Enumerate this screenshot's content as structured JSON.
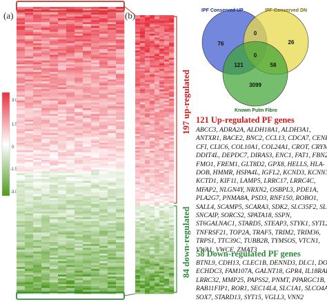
{
  "panels": {
    "a": "(a)",
    "b": "(b)"
  },
  "colorbar": {
    "ticks": [
      "3.0",
      "1.5",
      "0",
      "-1.5",
      "-3.0"
    ],
    "high_color": "#e8303e",
    "mid_color": "#ffffff",
    "low_color": "#4f9a1e"
  },
  "heatmap": {
    "up_label": "197 up-regulated",
    "down_label": "84 down-regulated",
    "up_label_color": "#cc1a1a",
    "down_label_color": "#2e8b3a",
    "box_color_top": "#c0392b",
    "box_color_bottom": "#2e8b3a"
  },
  "venn": {
    "sets": [
      {
        "name": "IPF Conserved UP",
        "color": "#5b72d6"
      },
      {
        "name": "IPF Conserved DN",
        "color": "#e8d94c"
      },
      {
        "name": "Known Pulm Fibro",
        "color": "#3fa535"
      }
    ],
    "counts": {
      "up_only": "76",
      "dn_only": "26",
      "fibro_only": "3099",
      "up_dn": "0",
      "up_fibro": "121",
      "dn_fibro": "58",
      "all": "0"
    }
  },
  "up_genes": {
    "title": "121 Up-regulated PF genes",
    "lines": [
      "ABCC3,    ADRA2A,    ALDH18A1,    ALDH3A1,",
      "ANTXR1, BACE2, BNC2, CCL13, CDCA7, CENPF,",
      "CFI, CLIC6, COL10A1, COL24A1, CROT, CRYM,",
      "DDIT4L, DEPDC7, DIRAS3, ENC1, FAT1, FBN2,",
      "FMO1,  FREM1,  GLT8D2,  GPX8,  HELLS,  HLA-",
      "DOB, HMMR, HSPA4L, IGFL2, KCND3, KCNN3,",
      "KCTD1,   KIF11,   LAMP5,   LRRC17,   LRRC4C,",
      "MFAP2,   NLGN4Y,   NRXN2,   OSBPL3,   PDE1A,",
      "PLA2G7,  PNMA8A,  PSD3,  RNF150,  ROBO1,",
      "SALL4, SCAMP5, SCARA3, SDK2, SLC35F2, SLN,",
      "SNCAIP,     SORCS2,      SPATA18,      SSPN,",
      "ST6GALNAC1, STARD5, STEAP3, STYK1, SYTL2,",
      "TNFRSF21,  TOP2A,  TRAF5,  TRIM2,  TRIM36,",
      "TRPS1,  TTC39C,  TUBB2B,  TYMSOS,  VTCN1,",
      "VWA1, VWCE, ZMAT3"
    ]
  },
  "down_genes": {
    "title": "58 Down-regulated PF genes",
    "lines": [
      "BTNL9, CDH13, CLEC1B, DENND3, DLC1, DOCK9,",
      "ECHDC3, FAM107A, GALNT18, GPR4, IL18RAP,",
      "LRRC32, MMP25, PAPSS2, PNMT, PPARGC1B,",
      "RAB11FIP1, ROR1, SEC14L4, SLC1A1, SLCO4A1,",
      "SOX7, STARD13, SYT15, VGLL3, VNN2"
    ]
  }
}
